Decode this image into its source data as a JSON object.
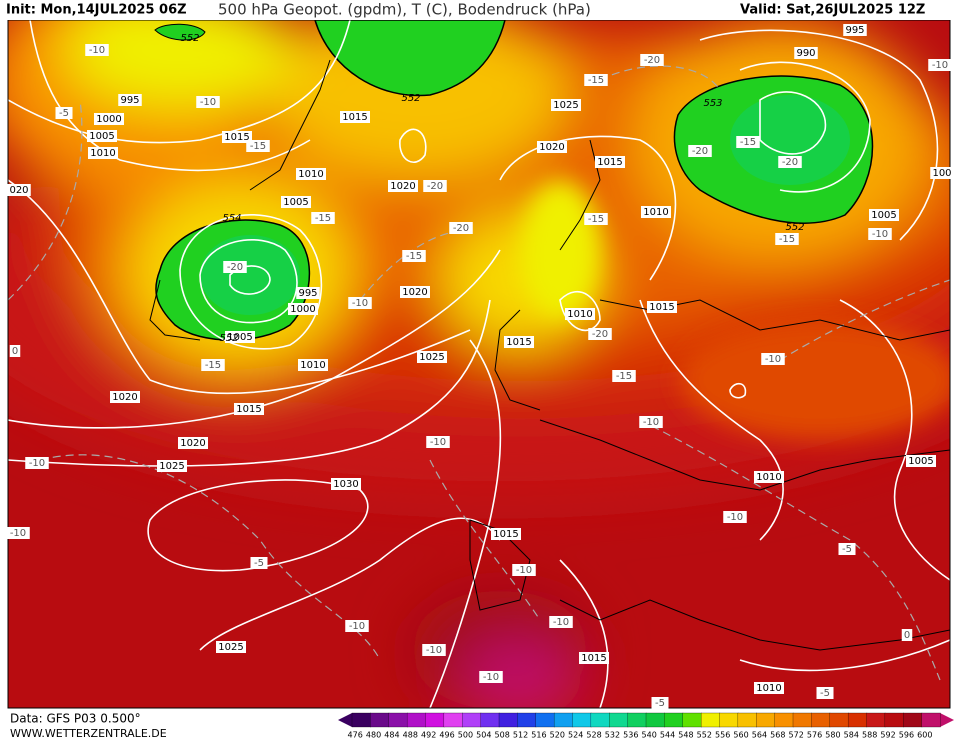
{
  "header": {
    "init": "Init: Mon,14JUL2025 06Z",
    "title": "500 hPa Geopot. (gpdm), T (C), Bodendruck (hPa)",
    "valid": "Valid: Sat,26JUL2025 12Z"
  },
  "footer": {
    "data": "Data: GFS P03 0.500°",
    "site": "WWW.WETTERZENTRALE.DE"
  },
  "colorbar": {
    "labels": [
      476,
      480,
      484,
      488,
      492,
      496,
      500,
      504,
      508,
      512,
      516,
      520,
      524,
      528,
      532,
      536,
      540,
      544,
      548,
      552,
      556,
      560,
      564,
      568,
      572,
      576,
      580,
      584,
      588,
      592,
      596,
      600
    ],
    "colors": [
      "#3a0060",
      "#6a0a8a",
      "#8a10a8",
      "#b010c8",
      "#d010e0",
      "#e040f0",
      "#b040f8",
      "#7030f0",
      "#4020e0",
      "#2040e8",
      "#1070f0",
      "#10a0f0",
      "#10c8e8",
      "#10d8c0",
      "#10d890",
      "#10d060",
      "#10c840",
      "#20d020",
      "#60e000",
      "#f0f000",
      "#f8d800",
      "#f8c000",
      "#f8a800",
      "#f89000",
      "#f07800",
      "#e86000",
      "#e04800",
      "#d83000",
      "#c81818",
      "#b80c10",
      "#a00818",
      "#c0106a"
    ]
  },
  "pressure_labels": [
    "1015",
    "1015",
    "1025",
    "1020",
    "1015",
    "1010",
    "1020",
    "1010",
    "1005",
    "1005",
    "995",
    "1000",
    "1005",
    "1010",
    "1020",
    "1025",
    "1015",
    "1010",
    "1015",
    "1020",
    "1015",
    "1020",
    "1025",
    "1030",
    "1015",
    "1010",
    "1005",
    "1025",
    "1015",
    "1010",
    "995",
    "1000",
    "1005",
    "1010",
    "990",
    "995",
    "020",
    "100"
  ],
  "temperature_labels": [
    "-10",
    "-5",
    "-10",
    "-15",
    "-15",
    "-20",
    "-15",
    "-10",
    "-20",
    "-15",
    "-20",
    "-15",
    "-20",
    "-15",
    "-20",
    "-15",
    "-15",
    "-20",
    "-20",
    "-15",
    "-10",
    "-10",
    "-10",
    "-10",
    "-10",
    "-10",
    "-10",
    "-5",
    "-10",
    "-10",
    "-10",
    "-10",
    "-10",
    "-10",
    "-5",
    "0",
    "0",
    "-5",
    "-5"
  ],
  "height_labels": [
    "552",
    "552",
    "553",
    "552",
    "554",
    "552"
  ]
}
